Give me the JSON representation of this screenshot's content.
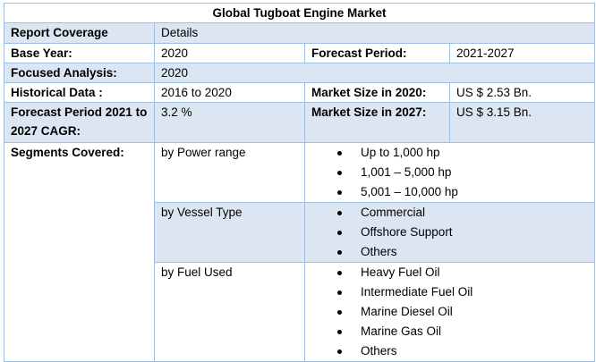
{
  "title": "Global Tugboat Engine Market",
  "rows": {
    "report_coverage": {
      "label": "Report Coverage",
      "value": "Details"
    },
    "base_year": {
      "label": "Base Year:",
      "value": "2020",
      "label2": "Forecast Period:",
      "value2": "2021-2027"
    },
    "focused": {
      "label": "Focused Analysis:",
      "value": "2020"
    },
    "historical": {
      "label": "Historical Data :",
      "value": "2016 to 2020",
      "label2": "Market Size in 2020:",
      "value2": "US $ 2.53 Bn."
    },
    "cagr": {
      "label": "Forecast Period 2021 to 2027 CAGR:",
      "value": "3.2 %",
      "label2": "Market Size in 2027:",
      "value2": "US $ 3.15 Bn."
    }
  },
  "segments": {
    "label": "Segments Covered:",
    "groups": [
      {
        "name": "by Power range",
        "items": [
          "Up to 1,000 hp",
          "1,001 – 5,000 hp",
          "5,001 – 10,000 hp"
        ]
      },
      {
        "name": "by Vessel Type",
        "items": [
          "Commercial",
          "Offshore Support",
          "Others"
        ]
      },
      {
        "name": "by Fuel Used",
        "items": [
          "Heavy Fuel Oil",
          "Intermediate Fuel Oil",
          "Marine Diesel Oil",
          "Marine Gas Oil",
          "Others"
        ]
      }
    ]
  }
}
